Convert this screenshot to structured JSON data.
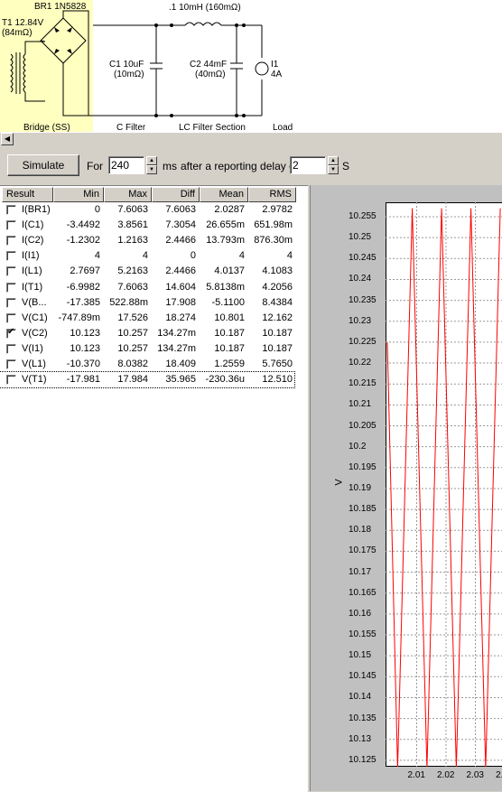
{
  "schematic": {
    "bridge_name": "BR1 1N5828",
    "transformer": "T1 12.84V",
    "transformer_r": "(84mΩ)",
    "inductor": ".1 10mH (160mΩ)",
    "c1": "C1 10uF",
    "c1_r": "(10mΩ)",
    "c2": "C2 44mF",
    "c2_r": "(40mΩ)",
    "load_name": "I1",
    "load_val": "4A",
    "sections": [
      "Bridge (SS)",
      "C Filter",
      "LC Filter Section",
      "Load"
    ]
  },
  "toolbar": {
    "simulate": "Simulate",
    "for_label": "For",
    "duration": "240",
    "ms_label": "ms",
    "delay_label": "after a reporting delay of",
    "delay": "2",
    "s_label": "S"
  },
  "table": {
    "headers": [
      "Result",
      "Min",
      "Max",
      "Diff",
      "Mean",
      "RMS"
    ],
    "rows": [
      {
        "name": "I(BR1)",
        "min": "0",
        "max": "7.6063",
        "diff": "7.6063",
        "mean": "2.0287",
        "rms": "2.9782",
        "checked": false
      },
      {
        "name": "I(C1)",
        "min": "-3.4492",
        "max": "3.8561",
        "diff": "7.3054",
        "mean": "26.655m",
        "rms": "651.98m",
        "checked": false
      },
      {
        "name": "I(C2)",
        "min": "-1.2302",
        "max": "1.2163",
        "diff": "2.4466",
        "mean": "13.793m",
        "rms": "876.30m",
        "checked": false
      },
      {
        "name": "I(I1)",
        "min": "4",
        "max": "4",
        "diff": "0",
        "mean": "4",
        "rms": "4",
        "checked": false
      },
      {
        "name": "I(L1)",
        "min": "2.7697",
        "max": "5.2163",
        "diff": "2.4466",
        "mean": "4.0137",
        "rms": "4.1083",
        "checked": false
      },
      {
        "name": "I(T1)",
        "min": "-6.9982",
        "max": "7.6063",
        "diff": "14.604",
        "mean": "5.8138m",
        "rms": "4.2056",
        "checked": false
      },
      {
        "name": "V(B...",
        "min": "-17.385",
        "max": "522.88m",
        "diff": "17.908",
        "mean": "-5.1100",
        "rms": "8.4384",
        "checked": false
      },
      {
        "name": "V(C1)",
        "min": "-747.89m",
        "max": "17.526",
        "diff": "18.274",
        "mean": "10.801",
        "rms": "12.162",
        "checked": false
      },
      {
        "name": "V(C2)",
        "min": "10.123",
        "max": "10.257",
        "diff": "134.27m",
        "mean": "10.187",
        "rms": "10.187",
        "checked": true
      },
      {
        "name": "V(I1)",
        "min": "10.123",
        "max": "10.257",
        "diff": "134.27m",
        "mean": "10.187",
        "rms": "10.187",
        "checked": false
      },
      {
        "name": "V(L1)",
        "min": "-10.370",
        "max": "8.0382",
        "diff": "18.409",
        "mean": "1.2559",
        "rms": "5.7650",
        "checked": false
      },
      {
        "name": "V(T1)",
        "min": "-17.981",
        "max": "17.984",
        "diff": "35.965",
        "mean": "-230.36u",
        "rms": "12.510",
        "checked": false
      }
    ]
  },
  "chart_data": {
    "type": "line",
    "ylabel": "V",
    "ylim": [
      10.125,
      10.258
    ],
    "yticks": [
      "10.255",
      "10.25",
      "10.245",
      "10.24",
      "10.235",
      "10.23",
      "10.225",
      "10.22",
      "10.215",
      "10.21",
      "10.205",
      "10.2",
      "10.195",
      "10.19",
      "10.185",
      "10.18",
      "10.175",
      "10.17",
      "10.165",
      "10.16",
      "10.155",
      "10.15",
      "10.145",
      "10.14",
      "10.135",
      "10.13",
      "10.125"
    ],
    "xticks": [
      "2.01",
      "2.02",
      "2.03",
      "2.0"
    ],
    "series_color": "#ff0000",
    "series": [
      {
        "x": [
          2.0,
          2.0035,
          2.0085,
          2.0135,
          2.0185,
          2.0235,
          2.0285,
          2.0335,
          2.0385
        ],
        "y": [
          10.225,
          10.123,
          10.257,
          10.123,
          10.257,
          10.123,
          10.257,
          10.123,
          10.257
        ]
      }
    ]
  }
}
